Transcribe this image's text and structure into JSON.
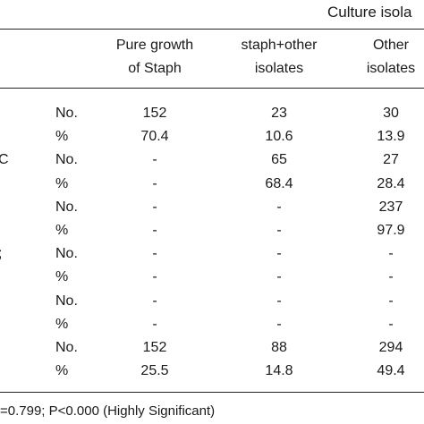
{
  "table": {
    "group_header": "Culture isola",
    "column_headers": [
      {
        "line1": "Pure growth",
        "line2": "of Staph"
      },
      {
        "line1": "staph+other",
        "line2": "isolates"
      },
      {
        "line1": "Other",
        "line2": "isolates"
      }
    ],
    "rows": [
      {
        "stub": "",
        "label": "No.",
        "cells": [
          "152",
          "23",
          "30"
        ]
      },
      {
        "stub": "",
        "label": "%",
        "cells": [
          "70.4",
          "10.6",
          "13.9"
        ]
      },
      {
        "stub": "C",
        "label": "No.",
        "cells": [
          "-",
          "65",
          "27"
        ]
      },
      {
        "stub": "",
        "label": "%",
        "cells": [
          "-",
          "68.4",
          "28.4"
        ]
      },
      {
        "stub": "",
        "label": "No.",
        "cells": [
          "-",
          "-",
          "237"
        ]
      },
      {
        "stub": "",
        "label": "%",
        "cells": [
          "-",
          "-",
          "97.9"
        ]
      },
      {
        "stub": ";",
        "label": "No.",
        "cells": [
          "-",
          "-",
          "-"
        ]
      },
      {
        "stub": "",
        "label": "%",
        "cells": [
          "-",
          "-",
          "-"
        ]
      },
      {
        "stub": "",
        "label": "No.",
        "cells": [
          "-",
          "-",
          "-"
        ]
      },
      {
        "stub": "",
        "label": "%",
        "cells": [
          "-",
          "-",
          "-"
        ]
      },
      {
        "stub": "",
        "label": "No.",
        "cells": [
          "152",
          "88",
          "294"
        ]
      },
      {
        "stub": "",
        "label": "%",
        "cells": [
          "25.5",
          "14.8",
          "49.4"
        ]
      }
    ],
    "footnote": "=0.799; P<0.000 (Highly Significant)"
  }
}
